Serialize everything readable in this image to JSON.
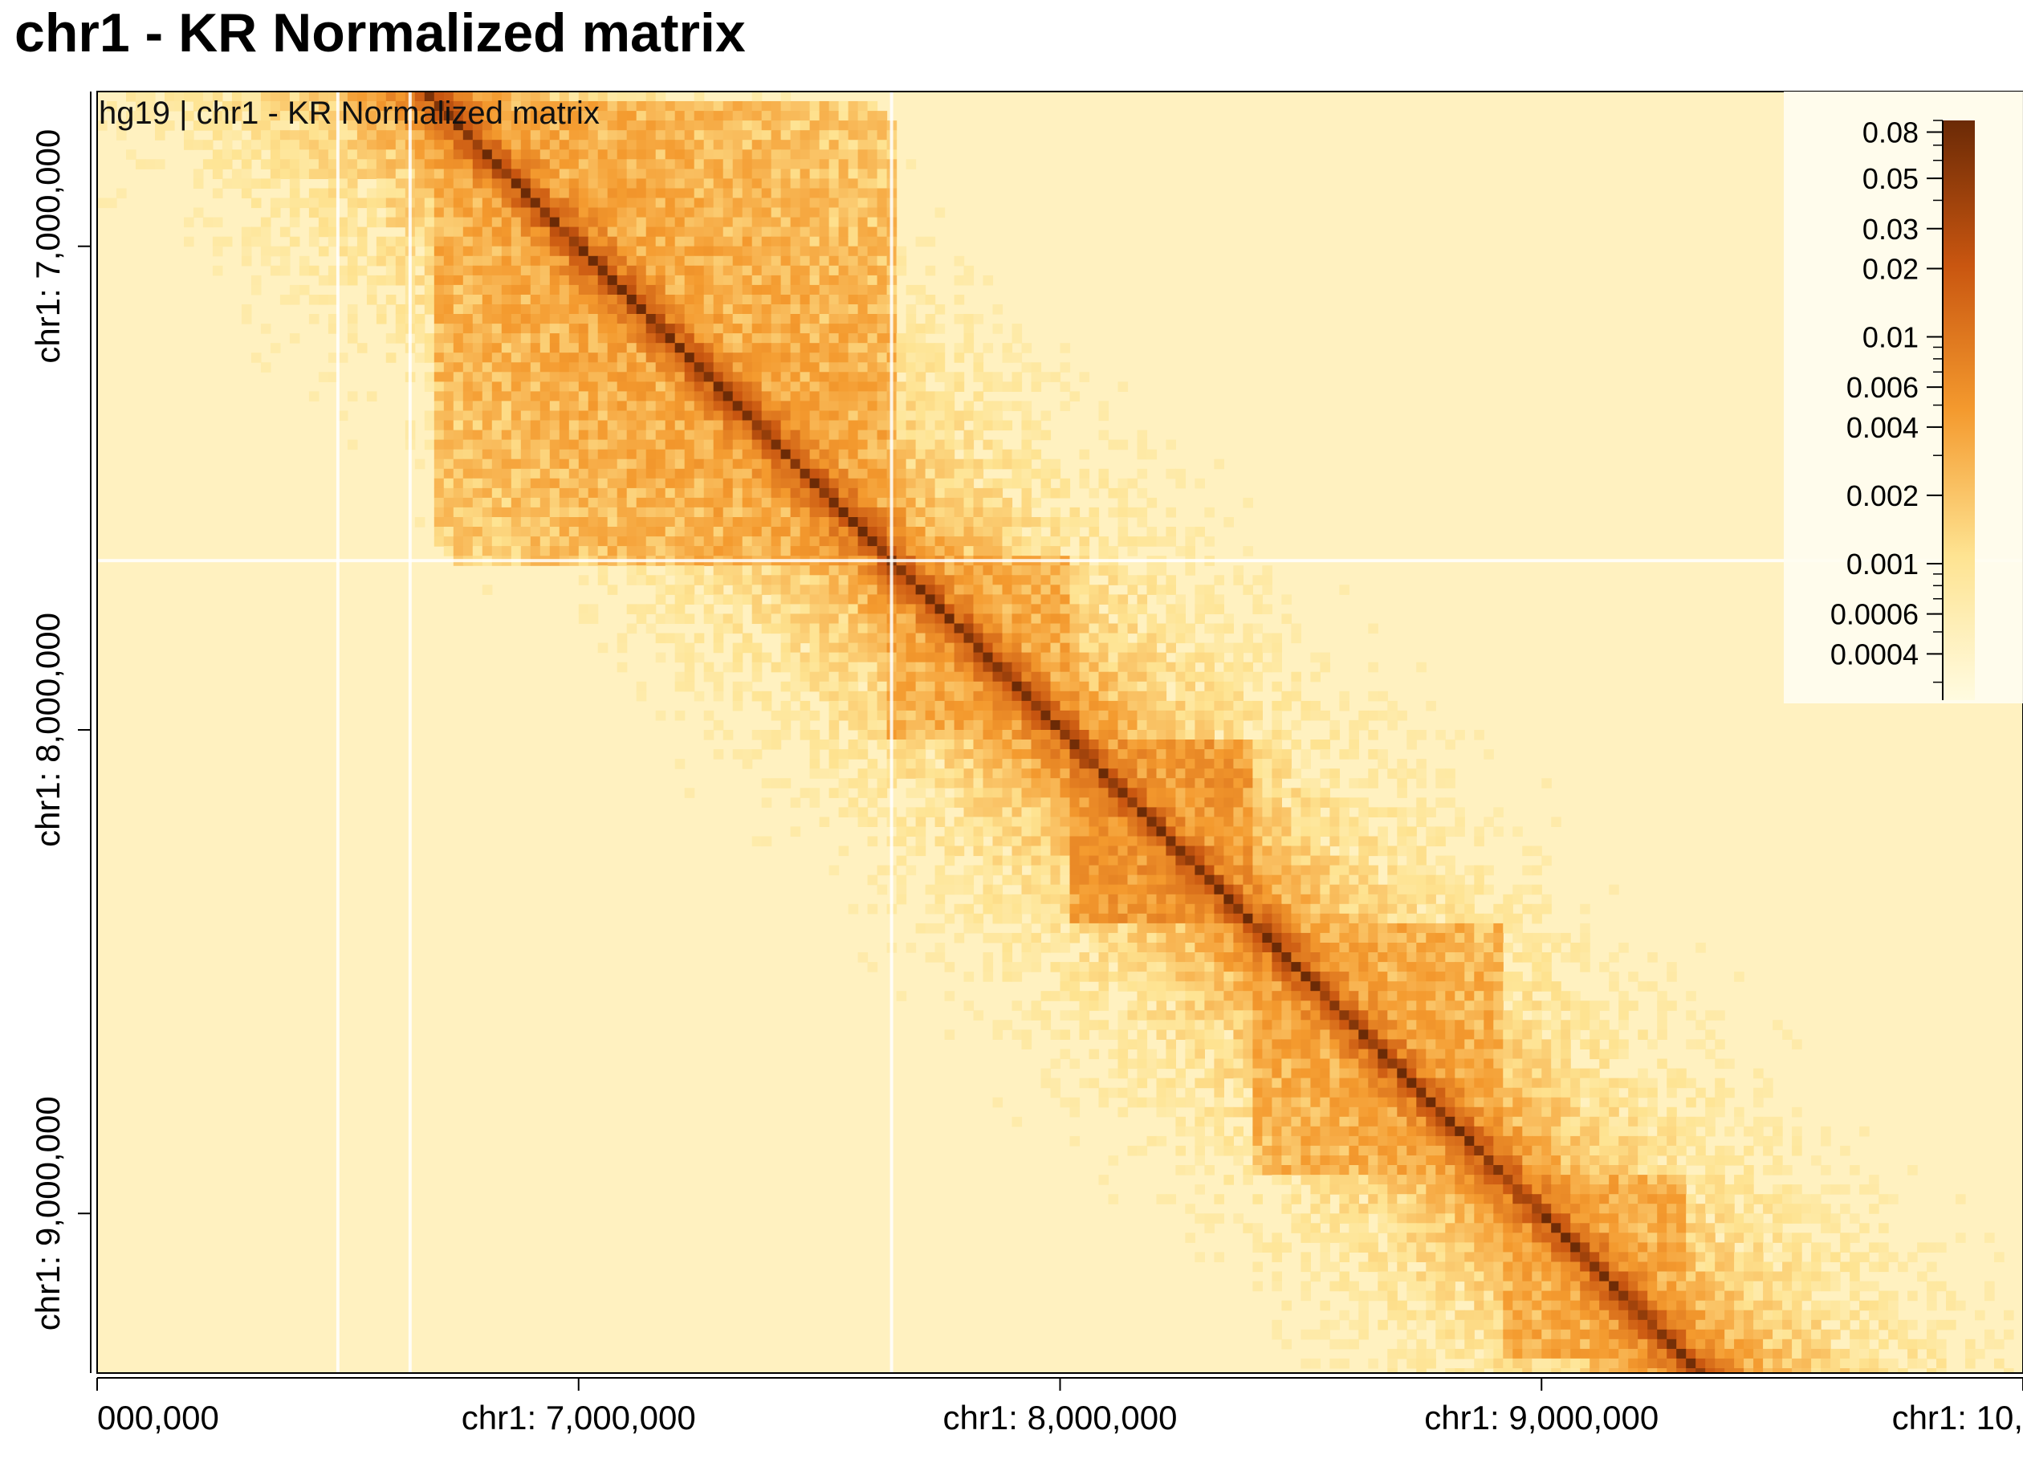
{
  "title": "chr1 - KR Normalized matrix",
  "chart_data": {
    "type": "heatmap",
    "title": "chr1 - KR Normalized matrix",
    "inset_label": "hg19 | chr1 - KR Normalized matrix",
    "genome": "hg19",
    "chromosome": "chr1",
    "normalization": "KR",
    "x_axis": {
      "range": [
        6000000,
        10000000
      ],
      "ticks": [
        {
          "value": 6000000,
          "label": "000,000"
        },
        {
          "value": 7000000,
          "label": "chr1: 7,000,000"
        },
        {
          "value": 8000000,
          "label": "chr1: 8,000,000"
        },
        {
          "value": 9000000,
          "label": "chr1: 9,000,000"
        },
        {
          "value": 10000000,
          "label": "chr1: 10,"
        }
      ]
    },
    "y_axis": {
      "range": [
        6680000,
        9330000
      ],
      "inverted": true,
      "ticks": [
        {
          "value": 7000000,
          "label": "chr1: 7,000,000"
        },
        {
          "value": 8000000,
          "label": "chr1: 8,000,000"
        },
        {
          "value": 9000000,
          "label": "chr1: 9,000,000"
        }
      ]
    },
    "color_scale": {
      "scale": "log",
      "range": [
        0.00025,
        0.09
      ],
      "colors": [
        "#fffbe0",
        "#fee391",
        "#f49a2e",
        "#c95610",
        "#6b2a06"
      ],
      "labels": [
        {
          "value": 0.08,
          "label": "0.08"
        },
        {
          "value": 0.05,
          "label": "0.05"
        },
        {
          "value": 0.03,
          "label": "0.03"
        },
        {
          "value": 0.02,
          "label": "0.02"
        },
        {
          "value": 0.01,
          "label": "0.01"
        },
        {
          "value": 0.006,
          "label": "0.006"
        },
        {
          "value": 0.004,
          "label": "0.004"
        },
        {
          "value": 0.002,
          "label": "0.002"
        },
        {
          "value": 0.001,
          "label": "0.001"
        },
        {
          "value": 0.0006,
          "label": "0.0006"
        },
        {
          "value": 0.0004,
          "label": "0.0004"
        }
      ],
      "legend_placement": "top-right"
    },
    "domains": [
      {
        "start": 6700000,
        "end": 7650000,
        "value": 0.004
      },
      {
        "start": 7650000,
        "end": 8020000,
        "value": 0.004
      },
      {
        "start": 8020000,
        "end": 8400000,
        "value": 0.006
      },
      {
        "start": 8400000,
        "end": 8920000,
        "value": 0.004
      },
      {
        "start": 8920000,
        "end": 9300000,
        "value": 0.004
      }
    ],
    "background_value": 0.00045,
    "diagonal_value": 0.08,
    "blank_lines": [
      6500000,
      6650000,
      7650000
    ]
  }
}
